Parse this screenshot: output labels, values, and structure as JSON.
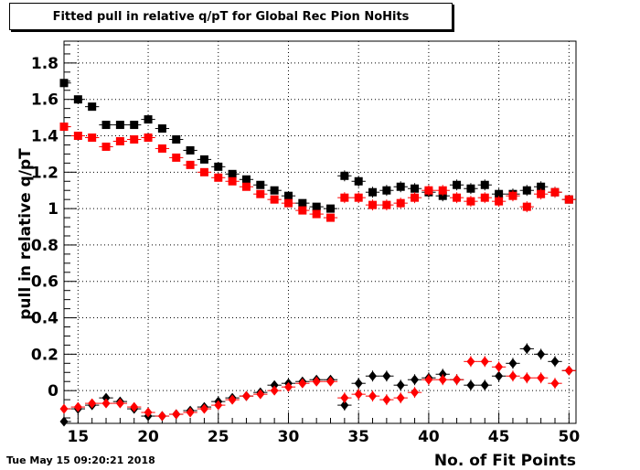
{
  "chart_data": {
    "type": "scatter",
    "title": "Fitted pull in relative q/pT for Global Rec Pion NoHits",
    "xlabel": "No. of Fit Points",
    "ylabel": "pull in relative q/pT",
    "xlim": [
      14,
      50.5
    ],
    "ylim": [
      -0.18,
      1.92
    ],
    "x_ticks": [
      15,
      20,
      25,
      30,
      35,
      40,
      45,
      50
    ],
    "y_ticks": [
      0,
      0.2,
      0.4,
      0.6,
      0.8,
      1,
      1.2,
      1.4,
      1.6,
      1.8
    ],
    "grid": true,
    "x": [
      14,
      15,
      16,
      17,
      18,
      19,
      20,
      21,
      22,
      23,
      24,
      25,
      26,
      27,
      28,
      29,
      30,
      31,
      32,
      33,
      34,
      35,
      36,
      37,
      38,
      39,
      40,
      41,
      42,
      43,
      44,
      45,
      46,
      47,
      48,
      49,
      50
    ],
    "series": [
      {
        "marker": "square",
        "color": "#000000",
        "values": [
          1.69,
          1.6,
          1.56,
          1.46,
          1.46,
          1.46,
          1.49,
          1.44,
          1.38,
          1.32,
          1.27,
          1.23,
          1.19,
          1.16,
          1.13,
          1.1,
          1.07,
          1.03,
          1.01,
          1.0,
          1.18,
          1.15,
          1.09,
          1.1,
          1.12,
          1.11,
          1.09,
          1.07,
          1.13,
          1.11,
          1.13,
          1.08,
          1.08,
          1.1,
          1.12,
          1.09,
          1.05
        ],
        "errors": [
          0.03,
          0.02,
          0.02,
          0.02,
          0.02,
          0.02,
          0.02,
          0.02,
          0.02,
          0.02,
          0.02,
          0.02,
          0.02,
          0.02,
          0.02,
          0.02,
          0.02,
          0.02,
          0.02,
          0.02,
          0.03,
          0.03,
          0.03,
          0.03,
          0.03,
          0.03,
          0.03,
          0.03,
          0.03,
          0.03,
          0.03,
          0.03,
          0.03,
          0.03,
          0.03,
          0.03,
          0.02
        ]
      },
      {
        "marker": "square",
        "color": "#ff0000",
        "values": [
          1.45,
          1.4,
          1.39,
          1.34,
          1.37,
          1.38,
          1.39,
          1.33,
          1.28,
          1.24,
          1.2,
          1.17,
          1.15,
          1.12,
          1.08,
          1.05,
          1.03,
          0.99,
          0.97,
          0.95,
          1.06,
          1.06,
          1.02,
          1.02,
          1.03,
          1.06,
          1.1,
          1.1,
          1.06,
          1.04,
          1.06,
          1.04,
          1.07,
          1.01,
          1.08,
          1.09,
          1.05
        ],
        "errors": [
          0.02,
          0.02,
          0.02,
          0.02,
          0.02,
          0.02,
          0.02,
          0.02,
          0.02,
          0.02,
          0.02,
          0.02,
          0.02,
          0.02,
          0.02,
          0.02,
          0.02,
          0.02,
          0.02,
          0.02,
          0.03,
          0.03,
          0.03,
          0.03,
          0.03,
          0.03,
          0.03,
          0.03,
          0.03,
          0.03,
          0.03,
          0.03,
          0.03,
          0.03,
          0.03,
          0.03,
          0.02
        ]
      },
      {
        "marker": "diamond",
        "color": "#000000",
        "values": [
          -0.17,
          -0.1,
          -0.08,
          -0.04,
          -0.06,
          -0.1,
          -0.14,
          -0.14,
          -0.13,
          -0.11,
          -0.09,
          -0.06,
          -0.04,
          -0.03,
          -0.01,
          0.03,
          0.04,
          0.05,
          0.06,
          0.06,
          -0.08,
          0.04,
          0.08,
          0.08,
          0.03,
          0.06,
          0.07,
          0.09,
          0.06,
          0.03,
          0.03,
          0.08,
          0.15,
          0.23,
          0.2,
          0.16,
          0.11
        ],
        "errors": [
          0.02,
          0.02,
          0.02,
          0.02,
          0.02,
          0.02,
          0.02,
          0.02,
          0.02,
          0.02,
          0.02,
          0.02,
          0.02,
          0.02,
          0.02,
          0.02,
          0.02,
          0.02,
          0.02,
          0.02,
          0.03,
          0.03,
          0.03,
          0.03,
          0.03,
          0.03,
          0.03,
          0.03,
          0.03,
          0.03,
          0.03,
          0.03,
          0.03,
          0.03,
          0.03,
          0.03,
          0.02
        ]
      },
      {
        "marker": "diamond",
        "color": "#ff0000",
        "values": [
          -0.1,
          -0.09,
          -0.07,
          -0.07,
          -0.07,
          -0.09,
          -0.12,
          -0.14,
          -0.13,
          -0.12,
          -0.1,
          -0.08,
          -0.05,
          -0.03,
          -0.02,
          0.0,
          0.02,
          0.04,
          0.05,
          0.05,
          -0.04,
          -0.02,
          -0.03,
          -0.05,
          -0.04,
          -0.01,
          0.06,
          0.06,
          0.06,
          0.16,
          0.16,
          0.13,
          0.08,
          0.07,
          0.07,
          0.04,
          0.11
        ],
        "errors": [
          0.02,
          0.02,
          0.02,
          0.02,
          0.02,
          0.02,
          0.02,
          0.02,
          0.02,
          0.02,
          0.02,
          0.02,
          0.02,
          0.02,
          0.02,
          0.02,
          0.02,
          0.02,
          0.02,
          0.02,
          0.03,
          0.03,
          0.03,
          0.03,
          0.03,
          0.03,
          0.03,
          0.03,
          0.03,
          0.03,
          0.03,
          0.03,
          0.03,
          0.03,
          0.03,
          0.03,
          0.02
        ]
      }
    ]
  },
  "footer": {
    "timestamp": "Tue May 15 09:20:21 2018"
  }
}
